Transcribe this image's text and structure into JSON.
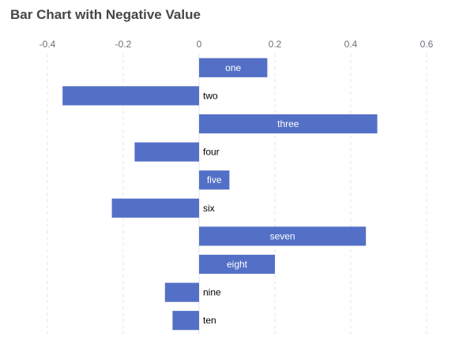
{
  "chart_data": {
    "type": "bar",
    "orientation": "horizontal",
    "title": "Bar Chart with Negative Value",
    "xlabel": "",
    "ylabel": "",
    "xlim": [
      -0.4,
      0.6
    ],
    "x_ticks": [
      -0.4,
      -0.2,
      0,
      0.2,
      0.4,
      0.6
    ],
    "x_tick_labels": [
      "-0.4",
      "-0.2",
      "0",
      "0.2",
      "0.4",
      "0.6"
    ],
    "x_axis_position": "top",
    "grid": "vertical dashed",
    "categories": [
      "one",
      "two",
      "three",
      "four",
      "five",
      "six",
      "seven",
      "eight",
      "nine",
      "ten"
    ],
    "values": [
      0.18,
      -0.36,
      0.47,
      -0.17,
      0.08,
      -0.23,
      0.44,
      0.2,
      -0.09,
      -0.07
    ],
    "bar_color": "#5470c6",
    "grid_color": "#e0e6f1",
    "label_color_inside": "#ffffff",
    "label_color_outside": "#000000"
  }
}
